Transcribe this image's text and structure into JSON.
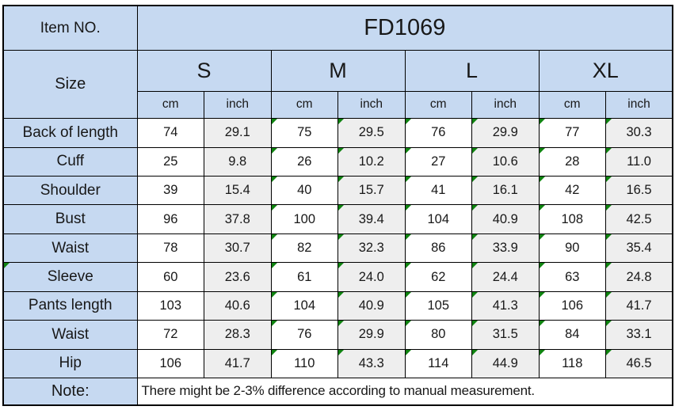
{
  "header": {
    "item_no_label": "Item NO.",
    "item_no_value": "FD1069",
    "size_label": "Size",
    "sizes": [
      "S",
      "M",
      "L",
      "XL"
    ],
    "units": [
      "cm",
      "inch"
    ]
  },
  "rows": [
    {
      "label": "Back of length",
      "values": [
        "74",
        "29.1",
        "75",
        "29.5",
        "76",
        "29.9",
        "77",
        "30.3"
      ]
    },
    {
      "label": "Cuff",
      "values": [
        "25",
        "9.8",
        "26",
        "10.2",
        "27",
        "10.6",
        "28",
        "11.0"
      ]
    },
    {
      "label": "Shoulder",
      "values": [
        "39",
        "15.4",
        "40",
        "15.7",
        "41",
        "16.1",
        "42",
        "16.5"
      ]
    },
    {
      "label": "Bust",
      "values": [
        "96",
        "37.8",
        "100",
        "39.4",
        "104",
        "40.9",
        "108",
        "42.5"
      ]
    },
    {
      "label": "Waist",
      "values": [
        "78",
        "30.7",
        "82",
        "32.3",
        "86",
        "33.9",
        "90",
        "35.4"
      ]
    },
    {
      "label": "Sleeve",
      "values": [
        "60",
        "23.6",
        "61",
        "24.0",
        "62",
        "24.4",
        "63",
        "24.8"
      ]
    },
    {
      "label": "Pants length",
      "values": [
        "103",
        "40.6",
        "104",
        "40.9",
        "105",
        "41.3",
        "106",
        "41.7"
      ]
    },
    {
      "label": "Waist",
      "values": [
        "72",
        "28.3",
        "76",
        "29.9",
        "80",
        "31.5",
        "84",
        "33.1"
      ]
    },
    {
      "label": "Hip",
      "values": [
        "106",
        "41.7",
        "110",
        "43.3",
        "114",
        "44.9",
        "118",
        "46.5"
      ]
    }
  ],
  "note": {
    "label": "Note:",
    "text": "There might be 2-3% difference according to manual measurement."
  },
  "colors": {
    "header_fill": "#C6D9F1",
    "cm_fill": "#FFFFFF",
    "inch_fill": "#EEEEEE",
    "border": "#000000",
    "flag_green": "#0F8310",
    "background": "#FFFFFF"
  },
  "indicator": {
    "name": "green-corner-flag",
    "meaning": "cell corner marker"
  }
}
